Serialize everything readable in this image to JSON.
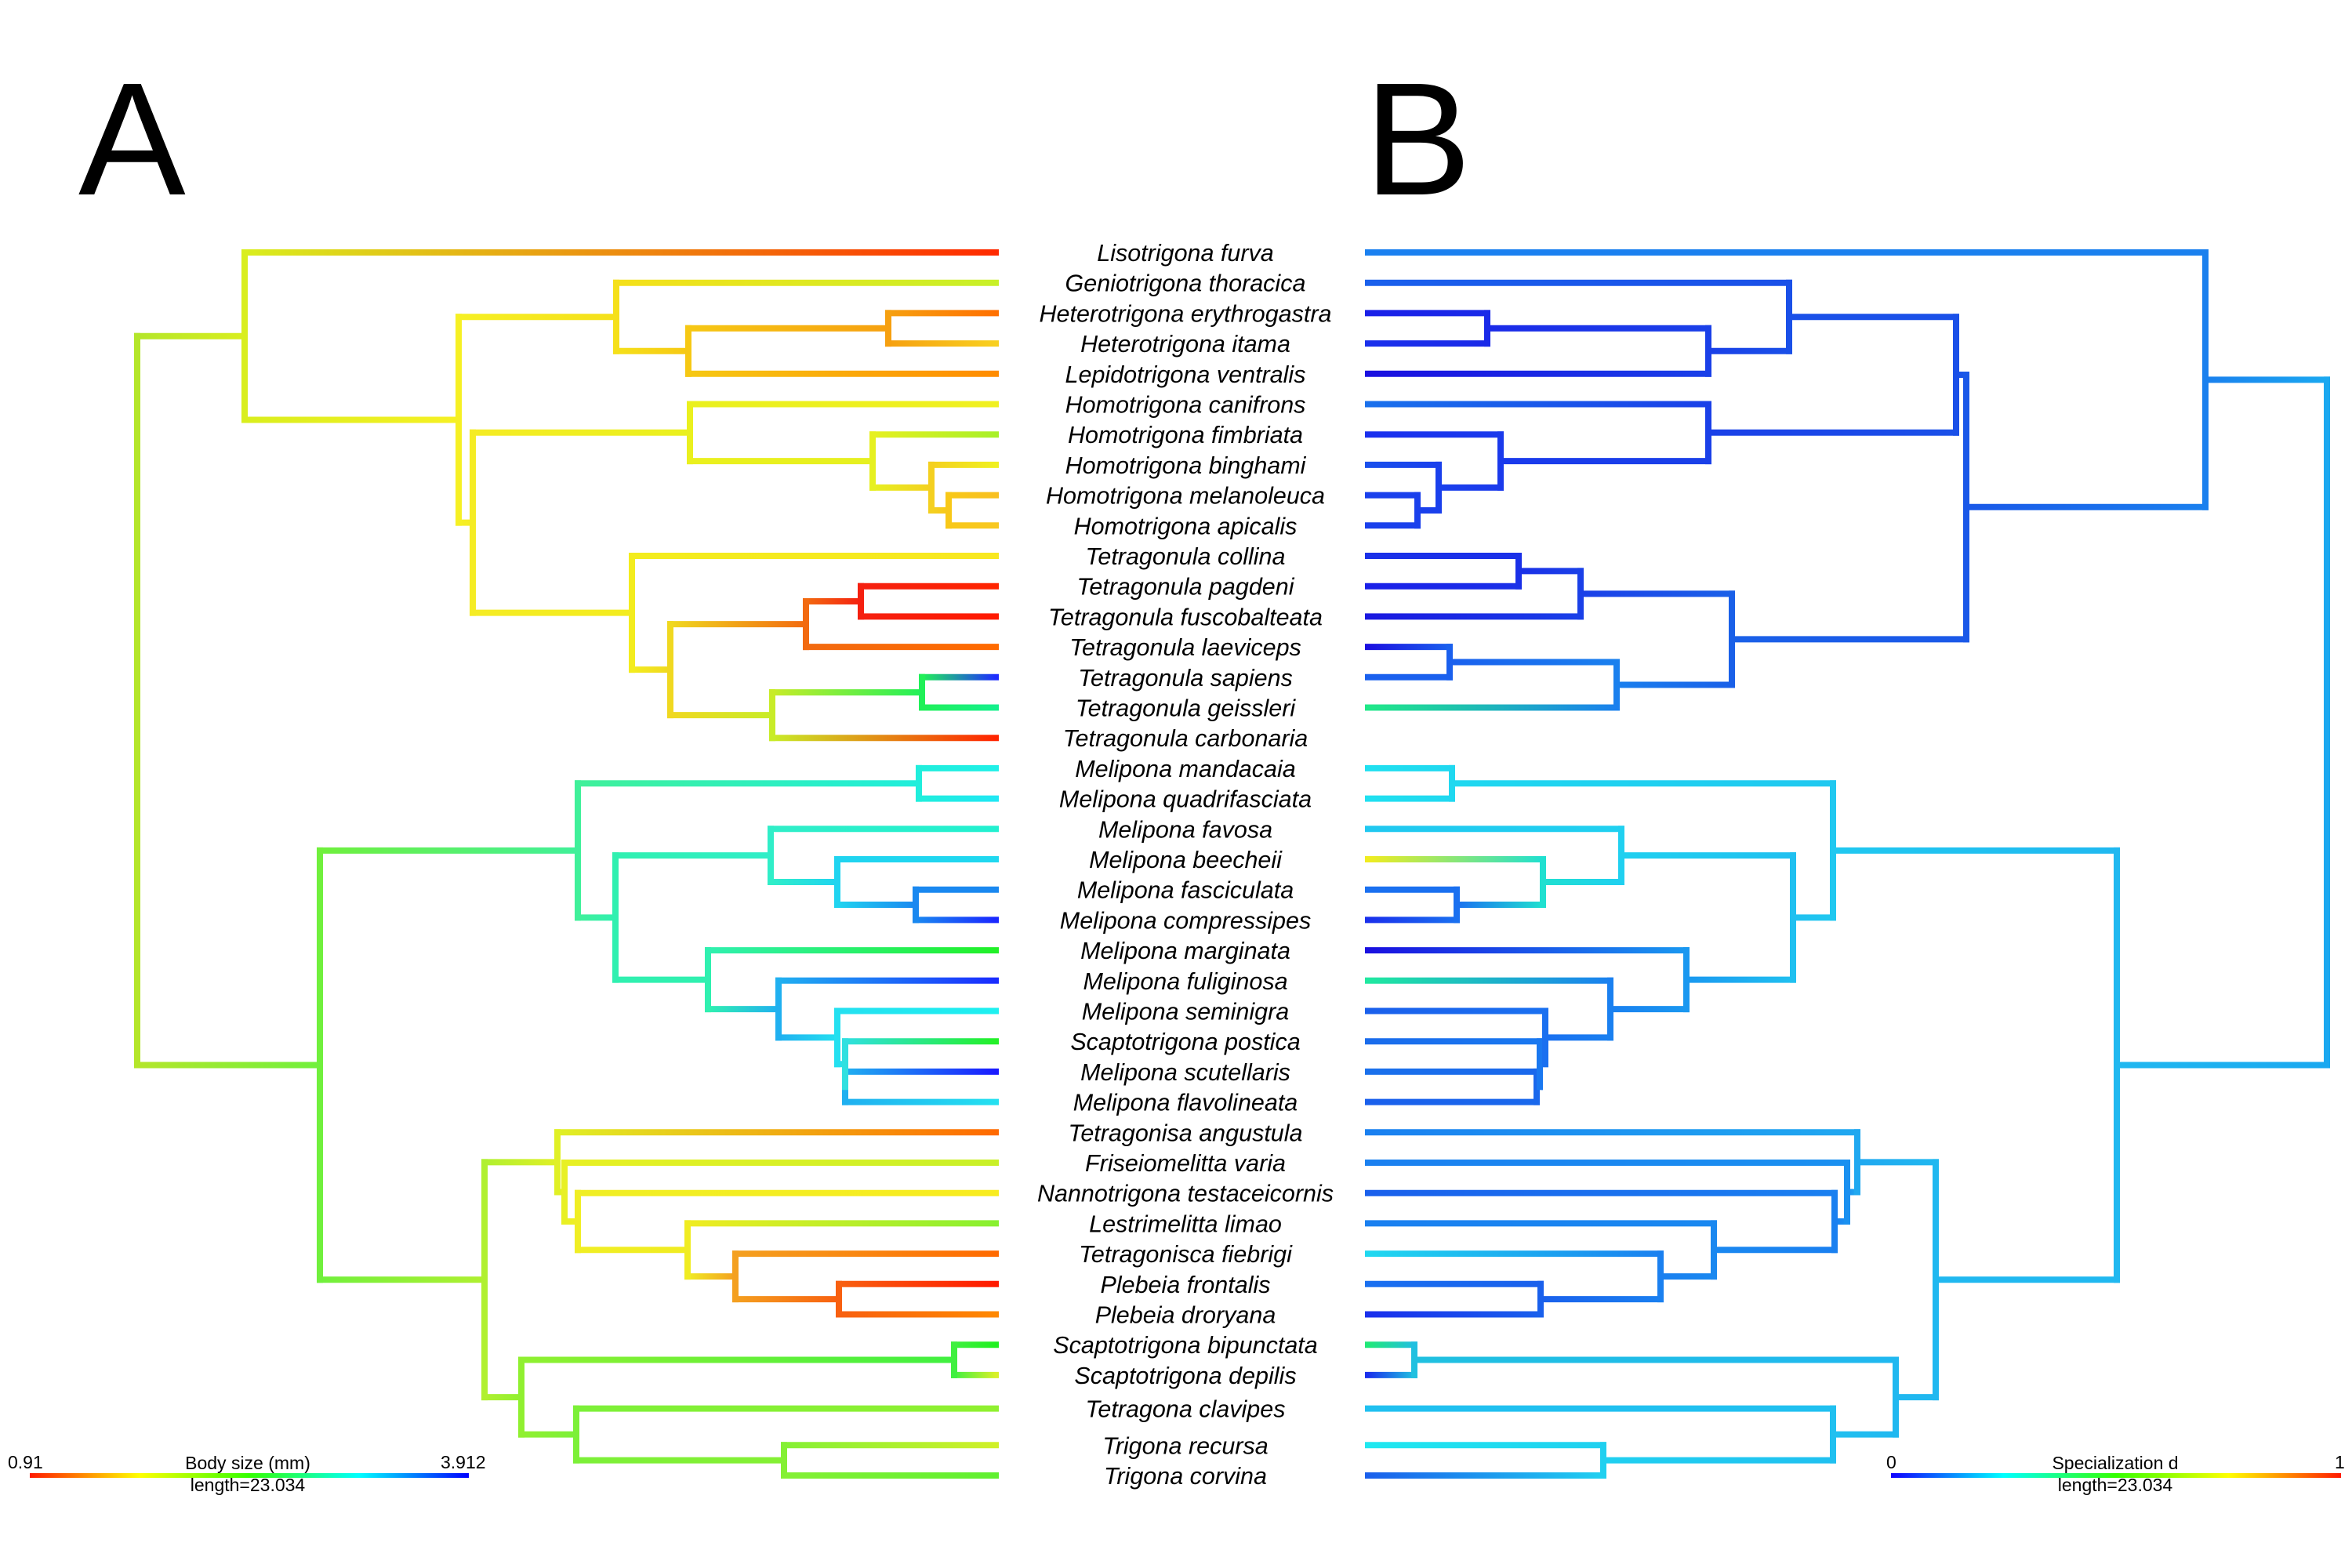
{
  "panels": {
    "a": {
      "letter": "A"
    },
    "b": {
      "letter": "B"
    }
  },
  "taxa": [
    "Lisotrigona furva",
    "Geniotrigona thoracica",
    "Heterotrigona erythrogastra",
    "Heterotrigona itama",
    "Lepidotrigona ventralis",
    "Homotrigona canifrons",
    "Homotrigona fimbriata",
    "Homotrigona binghami",
    "Homotrigona melanoleuca",
    "Homotrigona apicalis",
    "Tetragonula collina",
    "Tetragonula pagdeni",
    "Tetragonula fuscobalteata",
    "Tetragonula laeviceps",
    "Tetragonula sapiens",
    "Tetragonula geissleri",
    "Tetragonula carbonaria",
    "Melipona mandacaia",
    "Melipona quadrifasciata",
    "Melipona favosa",
    "Melipona beecheii",
    "Melipona fasciculata",
    "Melipona compressipes",
    "Melipona marginata",
    "Melipona fuliginosa",
    "Melipona seminigra",
    "Scaptotrigona postica",
    "Melipona scutellaris",
    "Melipona flavolineata",
    "Tetragonisa angustula",
    "Friseiomelitta varia",
    "Nannotrigona testaceicornis",
    "Lestrimelitta limao",
    "Tetragonisca fiebrigi",
    "Plebeia frontalis",
    "Plebeia droryana",
    "Scaptotrigona bipunctata",
    "Scaptotrigona depilis",
    "Tetragona clavipes",
    "Trigona recursa",
    "Trigona corvina"
  ],
  "legend_a": {
    "min": "0.91",
    "max": "3.912",
    "title": "Body size (mm)",
    "length": "length=23.034",
    "gradient": [
      "#ff1a00",
      "#ffff00",
      "#33ff00",
      "#00ffff",
      "#0000ff"
    ]
  },
  "legend_b": {
    "min": "0",
    "max": "1",
    "title": "Specialization d",
    "length": "length=23.034",
    "gradient": [
      "#1000ff",
      "#00ffff",
      "#33ff00",
      "#ffff00",
      "#ff1a00"
    ]
  }
}
